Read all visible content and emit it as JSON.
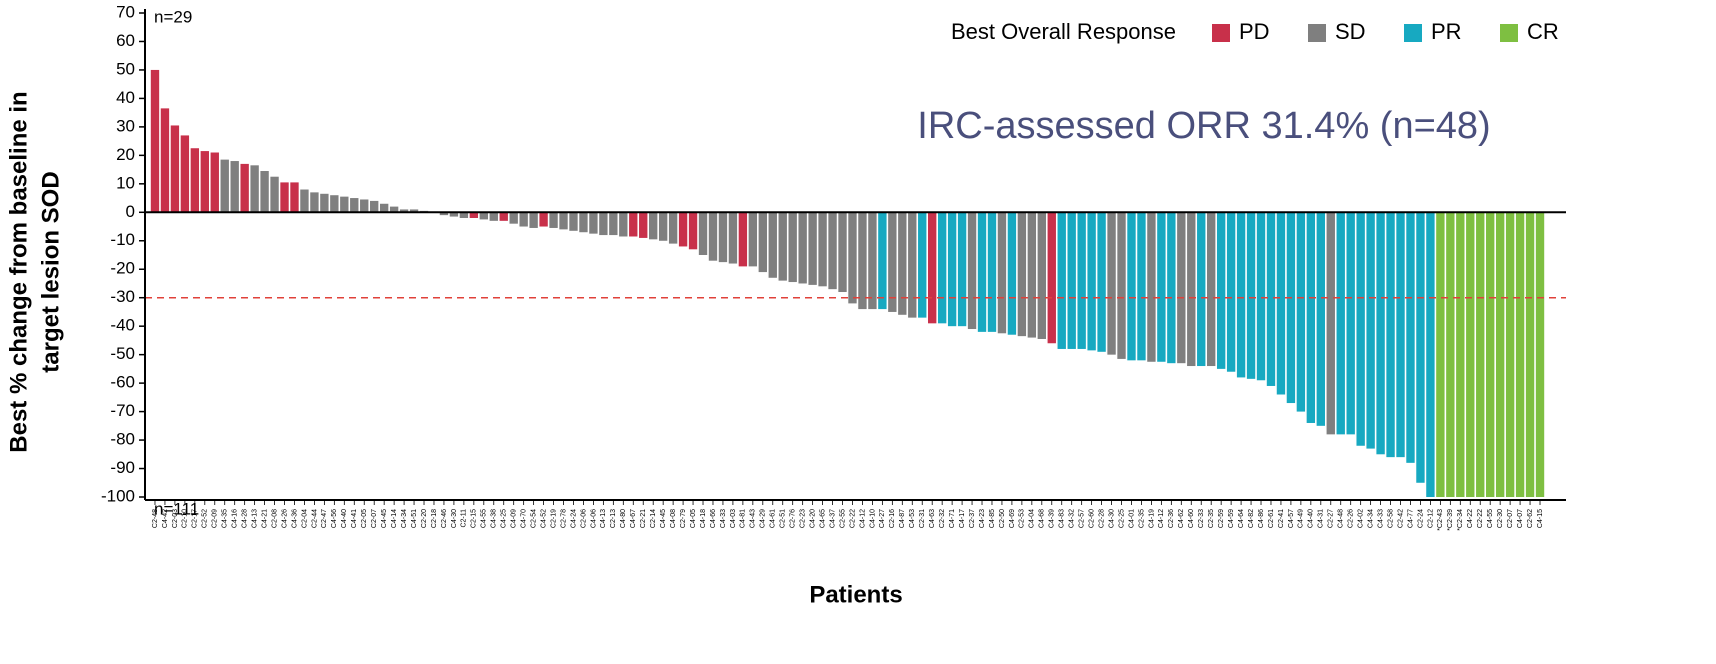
{
  "chart_data": {
    "type": "waterfall",
    "ylabel": [
      "Best % change from baseline in",
      "target lesion SOD"
    ],
    "xlabel": "Patients",
    "annotations": {
      "top_count": "n=29",
      "bottom_count": "n=111",
      "orr": "IRC-assessed ORR 31.4% (n=48)"
    },
    "legend": {
      "title": "Best Overall Response",
      "items": [
        {
          "name": "PD",
          "color": "#c8304a"
        },
        {
          "name": "SD",
          "color": "#7f7f7f"
        },
        {
          "name": "PR",
          "color": "#17a9c1"
        },
        {
          "name": "CR",
          "color": "#7ebf41"
        }
      ]
    },
    "ylim": [
      -100,
      70
    ],
    "yticks": [
      70,
      60,
      50,
      40,
      30,
      20,
      10,
      0,
      -10,
      -20,
      -30,
      -40,
      -50,
      -60,
      -70,
      -80,
      -90,
      -100
    ],
    "reference_line": -30,
    "categories": [
      "C2-48",
      "C4-42",
      "C2-03",
      "C2-10",
      "C2-17",
      "C2-52",
      "C2-09",
      "C4-35",
      "C4-16",
      "C4-28",
      "C4-13",
      "C4-21",
      "C2-08",
      "C4-26",
      "C4-36",
      "C2-04",
      "C2-44",
      "C2-47",
      "C4-56",
      "C4-40",
      "C4-41",
      "C2-05",
      "C2-07",
      "C4-45",
      "C4-14",
      "C4-34",
      "C4-51",
      "C2-20",
      "C2-18",
      "C2-46",
      "C4-30",
      "C2-11",
      "C2-15",
      "C4-55",
      "C4-38",
      "C4-25",
      "C4-09",
      "C4-70",
      "C2-54",
      "C4-52",
      "C2-19",
      "C2-78",
      "C4-24",
      "C2-06",
      "C4-06",
      "C4-13",
      "C2-13",
      "C4-80",
      "C4-67",
      "C2-21",
      "C2-14",
      "C4-45",
      "C4-08",
      "C2-79",
      "C4-05",
      "C4-18",
      "C4-66",
      "C4-33",
      "C4-03",
      "C4-81",
      "C4-43",
      "C4-29",
      "C4-61",
      "C2-51",
      "C2-76",
      "C2-23",
      "C4-20",
      "C4-65",
      "C4-37",
      "C2-55",
      "C2-22",
      "C4-12",
      "C4-10",
      "C4-27",
      "C2-16",
      "C4-87",
      "C4-53",
      "C2-31",
      "C4-63",
      "C2-32",
      "C4-71",
      "C4-17",
      "C2-37",
      "C4-23",
      "C4-85",
      "C2-50",
      "C4-69",
      "C2-53",
      "C4-04",
      "C4-68",
      "C4-39",
      "C4-83",
      "C4-32",
      "C2-57",
      "C2-60",
      "C2-28",
      "C4-30",
      "C2-25",
      "C4-01",
      "C2-35",
      "C4-19",
      "C4-12",
      "C2-36",
      "C4-62",
      "C4-60",
      "C2-33",
      "C2-35",
      "C2-59",
      "C4-59",
      "C4-64",
      "C4-82",
      "C4-86",
      "C2-61",
      "C2-41",
      "C4-57",
      "C4-49",
      "C4-40",
      "C4-31",
      "C2-27",
      "C4-48",
      "C2-26",
      "C4-02",
      "C4-34",
      "C4-33",
      "C2-58",
      "C2-42",
      "C4-77",
      "C2-24",
      "C2-12",
      "*C2-43",
      "*C2-39",
      "*C2-34",
      "C4-22",
      "C2-22",
      "C4-55",
      "C2-30",
      "C2-07",
      "C4-07",
      "C2-62",
      "C4-15"
    ],
    "values": [
      50,
      36.5,
      30.5,
      27,
      22.5,
      21.5,
      21,
      18.5,
      18,
      17,
      16.5,
      14.5,
      12.5,
      10.5,
      10.5,
      8,
      7,
      6.5,
      6,
      5.5,
      5,
      4.5,
      4,
      3,
      2,
      1,
      1,
      0.5,
      0.3,
      -1,
      -1.5,
      -2,
      -2,
      -2.5,
      -3,
      -3,
      -4,
      -5,
      -5.5,
      -5,
      -5.5,
      -6,
      -6.5,
      -7,
      -7.5,
      -8,
      -8,
      -8.5,
      -8.5,
      -9,
      -9.5,
      -10,
      -11,
      -12,
      -13,
      -15,
      -17,
      -17.5,
      -18,
      -19,
      -19,
      -21,
      -23,
      -24,
      -24.5,
      -25,
      -25.5,
      -26,
      -27,
      -28,
      -32,
      -34,
      -34,
      -34,
      -35,
      -36,
      -37,
      -37,
      -39,
      -39,
      -40,
      -40,
      -41,
      -42,
      -42,
      -42.5,
      -43,
      -43.5,
      -44,
      -44.5,
      -46,
      -48,
      -48,
      -48,
      -48.5,
      -49,
      -50,
      -51.5,
      -52,
      -52,
      -52.5,
      -52.5,
      -53,
      -53,
      -54,
      -54,
      -54,
      -55,
      -56,
      -58,
      -58.5,
      -59,
      -61,
      -64,
      -67,
      -70,
      -74,
      -75,
      -78,
      -78,
      -78,
      -82,
      -83,
      -85,
      -86,
      -86,
      -88,
      -95,
      -100,
      -100,
      -100,
      -100,
      -100,
      -100,
      -100,
      -100,
      -100,
      -100,
      -100,
      -100
    ],
    "responses": [
      "PD",
      "PD",
      "PD",
      "PD",
      "PD",
      "PD",
      "PD",
      "SD",
      "SD",
      "PD",
      "SD",
      "SD",
      "SD",
      "PD",
      "PD",
      "SD",
      "SD",
      "SD",
      "SD",
      "SD",
      "SD",
      "SD",
      "SD",
      "SD",
      "SD",
      "SD",
      "SD",
      "SD",
      "SD",
      "SD",
      "SD",
      "SD",
      "PD",
      "SD",
      "SD",
      "PD",
      "SD",
      "SD",
      "SD",
      "PD",
      "SD",
      "SD",
      "SD",
      "SD",
      "SD",
      "SD",
      "SD",
      "SD",
      "PD",
      "PD",
      "SD",
      "SD",
      "SD",
      "PD",
      "PD",
      "SD",
      "SD",
      "SD",
      "SD",
      "PD",
      "SD",
      "SD",
      "SD",
      "SD",
      "SD",
      "SD",
      "SD",
      "SD",
      "SD",
      "SD",
      "SD",
      "SD",
      "SD",
      "PR",
      "SD",
      "SD",
      "SD",
      "PR",
      "PD",
      "PR",
      "PR",
      "PR",
      "SD",
      "PR",
      "PR",
      "SD",
      "PR",
      "SD",
      "SD",
      "SD",
      "PD",
      "PR",
      "PR",
      "PR",
      "PR",
      "PR",
      "SD",
      "SD",
      "PR",
      "PR",
      "SD",
      "PR",
      "PR",
      "SD",
      "SD",
      "PR",
      "SD",
      "PR",
      "PR",
      "PR",
      "PR",
      "PR",
      "PR",
      "PR",
      "PR",
      "PR",
      "PR",
      "PR",
      "SD",
      "PR",
      "PR",
      "PR",
      "PR",
      "PR",
      "PR",
      "PR",
      "PR",
      "PR",
      "PR",
      "CR",
      "CR",
      "CR",
      "CR",
      "CR",
      "CR",
      "CR",
      "CR",
      "CR",
      "CR",
      "CR"
    ]
  }
}
